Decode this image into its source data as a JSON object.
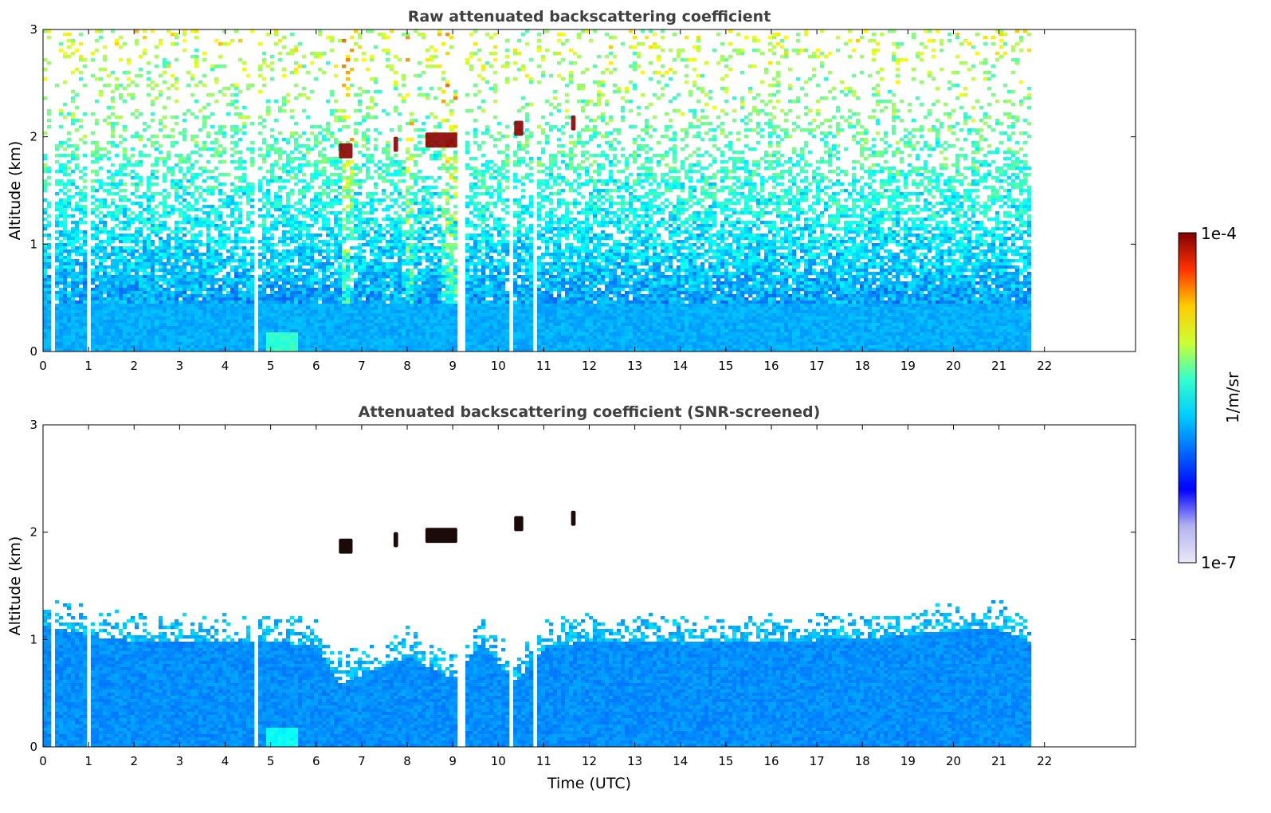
{
  "chart_data": [
    {
      "type": "heatmap",
      "title": "Raw attenuated backscattering coefficient",
      "xlabel": "",
      "ylabel": "Altitude (km)",
      "xlim": [
        0,
        24
      ],
      "ylim": [
        0,
        3
      ],
      "x_ticks": [
        0,
        1,
        2,
        3,
        4,
        5,
        6,
        7,
        8,
        9,
        10,
        11,
        12,
        13,
        14,
        15,
        16,
        17,
        18,
        19,
        20,
        21,
        22
      ],
      "y_ticks": [
        0,
        1,
        2,
        3
      ],
      "grid": false,
      "data_extent_time": [
        0,
        21.65
      ],
      "data_gaps_time": [
        [
          0.15,
          0.22
        ],
        [
          0.9,
          0.98
        ],
        [
          4.62,
          4.7
        ],
        [
          9.1,
          9.2
        ],
        [
          10.2,
          10.32
        ],
        [
          10.7,
          10.78
        ]
      ],
      "features": {
        "clouds": [
          {
            "t0": 6.5,
            "t1": 6.8,
            "alt": 1.87
          },
          {
            "t0": 7.7,
            "t1": 7.8,
            "alt": 1.93
          },
          {
            "t0": 8.4,
            "t1": 9.1,
            "alt": 1.97
          },
          {
            "t0": 10.35,
            "t1": 10.55,
            "alt": 2.08
          },
          {
            "t0": 11.6,
            "t1": 11.7,
            "alt": 2.13
          }
        ],
        "boundary_layer_top_km": 0.6,
        "noise_free_below_km": 0.45
      }
    },
    {
      "type": "heatmap",
      "title": "Attenuated backscattering coefficient (SNR-screened)",
      "xlabel": "Time (UTC)",
      "ylabel": "Altitude (km)",
      "xlim": [
        0,
        24
      ],
      "ylim": [
        0,
        3
      ],
      "x_ticks": [
        0,
        1,
        2,
        3,
        4,
        5,
        6,
        7,
        8,
        9,
        10,
        11,
        12,
        13,
        14,
        15,
        16,
        17,
        18,
        19,
        20,
        21,
        22
      ],
      "y_ticks": [
        0,
        1,
        2,
        3
      ],
      "grid": false,
      "data_extent_time": [
        0,
        21.65
      ],
      "data_gaps_time": [
        [
          0.15,
          0.22
        ],
        [
          0.9,
          0.98
        ],
        [
          4.62,
          4.7
        ],
        [
          9.1,
          9.2
        ],
        [
          10.2,
          10.32
        ],
        [
          10.7,
          10.78
        ]
      ],
      "aerosol_layer_top_km": [
        [
          0.0,
          1.15
        ],
        [
          1.0,
          1.05
        ],
        [
          2.0,
          1.0
        ],
        [
          3.0,
          1.0
        ],
        [
          4.0,
          1.0
        ],
        [
          5.0,
          1.0
        ],
        [
          6.0,
          0.95
        ],
        [
          6.5,
          0.6
        ],
        [
          7.0,
          0.7
        ],
        [
          8.0,
          0.85
        ],
        [
          8.5,
          0.75
        ],
        [
          9.0,
          0.65
        ],
        [
          9.6,
          1.0
        ],
        [
          10.3,
          0.6
        ],
        [
          11.0,
          0.95
        ],
        [
          12.0,
          1.0
        ],
        [
          14.0,
          0.98
        ],
        [
          16.0,
          1.0
        ],
        [
          18.0,
          1.02
        ],
        [
          20.0,
          1.1
        ],
        [
          21.0,
          1.1
        ],
        [
          21.65,
          1.0
        ]
      ]
    }
  ],
  "colorbar": {
    "label": "1/m/sr",
    "max_label": "1e-4",
    "min_label": "1e-7",
    "scale": "log",
    "colormap": "jet",
    "colors": [
      "#e9e9f6",
      "#b3b3f2",
      "#0000ff",
      "#0066ff",
      "#00ccff",
      "#33ffcc",
      "#ccff33",
      "#ffcc00",
      "#ff3300",
      "#800000"
    ]
  }
}
